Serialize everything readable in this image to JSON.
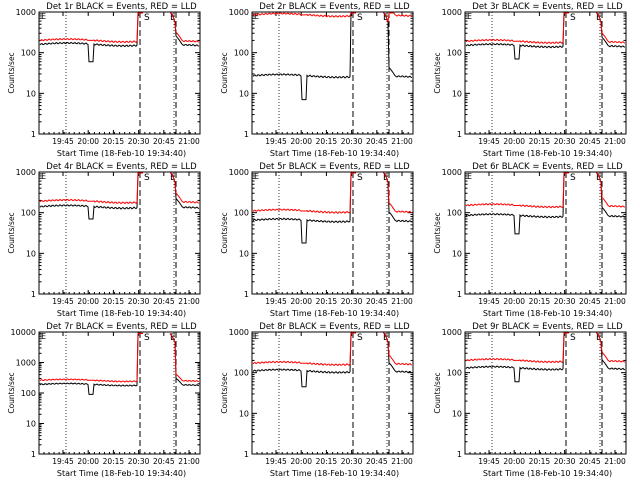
{
  "chart_data": [
    {
      "type": "line",
      "title": "Det 1r  BLACK = Events, RED = LLD",
      "xlabel": "Start Time (18-Feb-10 19:34:40)",
      "ylabel": "Counts/sec",
      "yscale": "log",
      "ylim": [
        1,
        1000
      ],
      "yticks": [
        "1",
        "10",
        "100",
        "1000"
      ],
      "xticks": [
        "19:45",
        "20:00",
        "20:15",
        "20:30",
        "20:45",
        "21:00"
      ],
      "markers": [
        {
          "label": "S",
          "kind": "start"
        },
        {
          "label": "E",
          "kind": "end"
        }
      ],
      "series": [
        {
          "name": "Events",
          "color": "#000000",
          "level": 160,
          "dip": 60
        },
        {
          "name": "LLD",
          "color": "#ff0000",
          "level": 200,
          "dip": 200
        }
      ]
    },
    {
      "type": "line",
      "title": "Det 2r  BLACK = Events, RED = LLD",
      "xlabel": "Start Time (18-Feb-10 19:34:40)",
      "ylabel": "Counts/sec",
      "yscale": "log",
      "ylim": [
        1,
        1000
      ],
      "yticks": [
        "1",
        "10",
        "100",
        "1000"
      ],
      "xticks": [
        "19:45",
        "20:00",
        "20:15",
        "20:30",
        "20:45",
        "21:00"
      ],
      "markers": [
        {
          "label": "S",
          "kind": "start"
        },
        {
          "label": "E",
          "kind": "end"
        }
      ],
      "series": [
        {
          "name": "Events",
          "color": "#000000",
          "level": 27,
          "dip": 7
        },
        {
          "name": "LLD",
          "color": "#ff0000",
          "level": 850,
          "dip": 850
        }
      ]
    },
    {
      "type": "line",
      "title": "Det 3r  BLACK = Events, RED = LLD",
      "xlabel": "Start Time (18-Feb-10 19:34:40)",
      "ylabel": "Counts/sec",
      "yscale": "log",
      "ylim": [
        1,
        1000
      ],
      "yticks": [
        "1",
        "10",
        "100",
        "1000"
      ],
      "xticks": [
        "19:45",
        "20:00",
        "20:15",
        "20:30",
        "20:45",
        "21:00"
      ],
      "markers": [
        {
          "label": "S",
          "kind": "start"
        },
        {
          "label": "E",
          "kind": "end"
        }
      ],
      "series": [
        {
          "name": "Events",
          "color": "#000000",
          "level": 150,
          "dip": 70
        },
        {
          "name": "LLD",
          "color": "#ff0000",
          "level": 190,
          "dip": 190
        }
      ]
    },
    {
      "type": "line",
      "title": "Det 4r  BLACK = Events, RED = LLD",
      "xlabel": "Start Time (18-Feb-10 19:34:40)",
      "ylabel": "Counts/sec",
      "yscale": "log",
      "ylim": [
        1,
        1000
      ],
      "yticks": [
        "1",
        "10",
        "100",
        "1000"
      ],
      "xticks": [
        "19:45",
        "20:00",
        "20:15",
        "20:30",
        "20:45",
        "21:00"
      ],
      "markers": [
        {
          "label": "S",
          "kind": "start"
        },
        {
          "label": "E",
          "kind": "end"
        }
      ],
      "series": [
        {
          "name": "Events",
          "color": "#000000",
          "level": 140,
          "dip": 70
        },
        {
          "name": "LLD",
          "color": "#ff0000",
          "level": 190,
          "dip": 190
        }
      ]
    },
    {
      "type": "line",
      "title": "Det 5r  BLACK = Events, RED = LLD",
      "xlabel": "Start Time (18-Feb-10 19:34:40)",
      "ylabel": "Counts/sec",
      "yscale": "log",
      "ylim": [
        1,
        1000
      ],
      "yticks": [
        "1",
        "10",
        "100",
        "1000"
      ],
      "xticks": [
        "19:45",
        "20:00",
        "20:15",
        "20:30",
        "20:45",
        "21:00"
      ],
      "markers": [
        {
          "label": "S",
          "kind": "start"
        },
        {
          "label": "E",
          "kind": "end"
        }
      ],
      "series": [
        {
          "name": "Events",
          "color": "#000000",
          "level": 65,
          "dip": 18
        },
        {
          "name": "LLD",
          "color": "#ff0000",
          "level": 110,
          "dip": 110
        }
      ]
    },
    {
      "type": "line",
      "title": "Det 6r  BLACK = Events, RED = LLD",
      "xlabel": "Start Time (18-Feb-10 19:34:40)",
      "ylabel": "Counts/sec",
      "yscale": "log",
      "ylim": [
        1,
        1000
      ],
      "yticks": [
        "1",
        "10",
        "100",
        "1000"
      ],
      "xticks": [
        "19:45",
        "20:00",
        "20:15",
        "20:30",
        "20:45",
        "21:00"
      ],
      "markers": [
        {
          "label": "S",
          "kind": "start"
        },
        {
          "label": "E",
          "kind": "end"
        }
      ],
      "series": [
        {
          "name": "Events",
          "color": "#000000",
          "level": 85,
          "dip": 30
        },
        {
          "name": "LLD",
          "color": "#ff0000",
          "level": 150,
          "dip": 150
        }
      ]
    },
    {
      "type": "line",
      "title": "Det 7r  BLACK = Events, RED = LLD",
      "xlabel": "Start Time (18-Feb-10 19:34:40)",
      "ylabel": "Counts/sec",
      "yscale": "log",
      "ylim": [
        1,
        10000
      ],
      "yticks": [
        "1",
        "10",
        "100",
        "1000",
        "10000"
      ],
      "xticks": [
        "19:45",
        "20:00",
        "20:15",
        "20:30",
        "20:45",
        "21:00"
      ],
      "markers": [
        {
          "label": "S",
          "kind": "start"
        },
        {
          "label": "E",
          "kind": "end"
        }
      ],
      "series": [
        {
          "name": "Events",
          "color": "#000000",
          "level": 190,
          "dip": 90
        },
        {
          "name": "LLD",
          "color": "#ff0000",
          "level": 260,
          "dip": 260
        }
      ]
    },
    {
      "type": "line",
      "title": "Det 8r  BLACK = Events, RED = LLD",
      "xlabel": "Start Time (18-Feb-10 19:34:40)",
      "ylabel": "Counts/sec",
      "yscale": "log",
      "ylim": [
        1,
        1000
      ],
      "yticks": [
        "1",
        "10",
        "100",
        "1000"
      ],
      "xticks": [
        "19:45",
        "20:00",
        "20:15",
        "20:30",
        "20:45",
        "21:00"
      ],
      "markers": [
        {
          "label": "S",
          "kind": "start"
        },
        {
          "label": "E",
          "kind": "end"
        }
      ],
      "series": [
        {
          "name": "Events",
          "color": "#000000",
          "level": 110,
          "dip": 45
        },
        {
          "name": "LLD",
          "color": "#ff0000",
          "level": 170,
          "dip": 170
        }
      ]
    },
    {
      "type": "line",
      "title": "Det 9r  BLACK = Events, RED = LLD",
      "xlabel": "Start Time (18-Feb-10 19:34:40)",
      "ylabel": "Counts/sec",
      "yscale": "log",
      "ylim": [
        1,
        1000
      ],
      "yticks": [
        "1",
        "10",
        "100",
        "1000"
      ],
      "xticks": [
        "19:45",
        "20:00",
        "20:15",
        "20:30",
        "20:45",
        "21:00"
      ],
      "markers": [
        {
          "label": "S",
          "kind": "start"
        },
        {
          "label": "E",
          "kind": "end"
        }
      ],
      "series": [
        {
          "name": "Events",
          "color": "#000000",
          "level": 130,
          "dip": 60
        },
        {
          "name": "LLD",
          "color": "#ff0000",
          "level": 200,
          "dip": 200
        }
      ]
    }
  ]
}
